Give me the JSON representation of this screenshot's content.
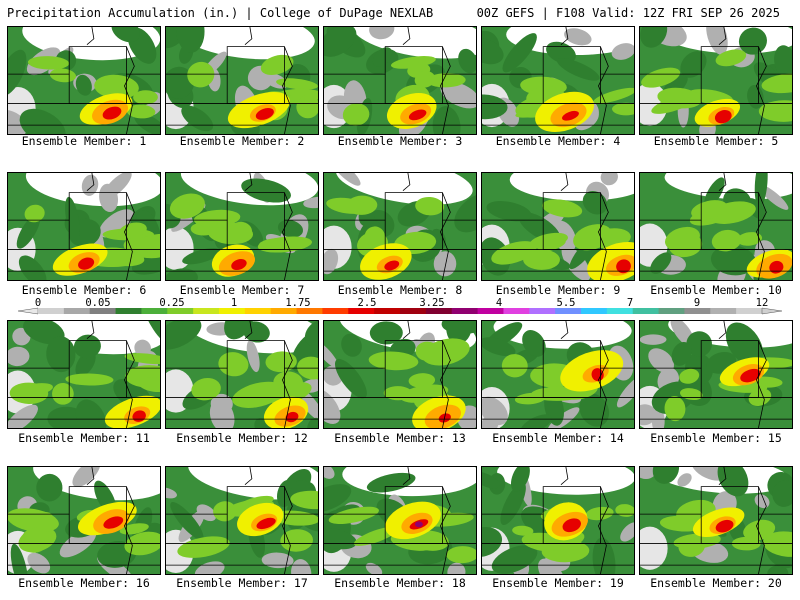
{
  "header": {
    "title": "Precipitation Accumulation (in.) | College of DuPage NEXLAB",
    "run_info": "00Z GEFS | F108 Valid: 12Z FRI SEP 26 2025"
  },
  "colorbar": {
    "tick_labels": [
      "0",
      "0.05",
      "0.25",
      "1",
      "1.75",
      "2.5",
      "3.25",
      "4",
      "5.5",
      "7",
      "9",
      "12"
    ],
    "colors": [
      "#d0d0d0",
      "#a8a8a8",
      "#808080",
      "#2f7f2f",
      "#4caf3a",
      "#7fcc2a",
      "#c8e61e",
      "#f0f000",
      "#ffd200",
      "#ffaa00",
      "#ff7800",
      "#ff3c00",
      "#e60000",
      "#c00000",
      "#a00010",
      "#800030",
      "#900070",
      "#c000a0",
      "#e040e0",
      "#b070ff",
      "#7090ff",
      "#30c8ff",
      "#40e0e0",
      "#40c0a0",
      "#60a080",
      "#909090",
      "#b0b0b0",
      "#d0d0d0"
    ]
  },
  "panels": [
    {
      "label": "Ensemble Member: 1"
    },
    {
      "label": "Ensemble Member: 2"
    },
    {
      "label": "Ensemble Member: 3"
    },
    {
      "label": "Ensemble Member: 4"
    },
    {
      "label": "Ensemble Member: 5"
    },
    {
      "label": "Ensemble Member: 6"
    },
    {
      "label": "Ensemble Member: 7"
    },
    {
      "label": "Ensemble Member: 8"
    },
    {
      "label": "Ensemble Member: 9"
    },
    {
      "label": "Ensemble Member: 10"
    },
    {
      "label": "Ensemble Member: 11"
    },
    {
      "label": "Ensemble Member: 12"
    },
    {
      "label": "Ensemble Member: 13"
    },
    {
      "label": "Ensemble Member: 14"
    },
    {
      "label": "Ensemble Member: 15"
    },
    {
      "label": "Ensemble Member: 16"
    },
    {
      "label": "Ensemble Member: 17"
    },
    {
      "label": "Ensemble Member: 18"
    },
    {
      "label": "Ensemble Member: 19"
    },
    {
      "label": "Ensemble Member: 20"
    }
  ]
}
